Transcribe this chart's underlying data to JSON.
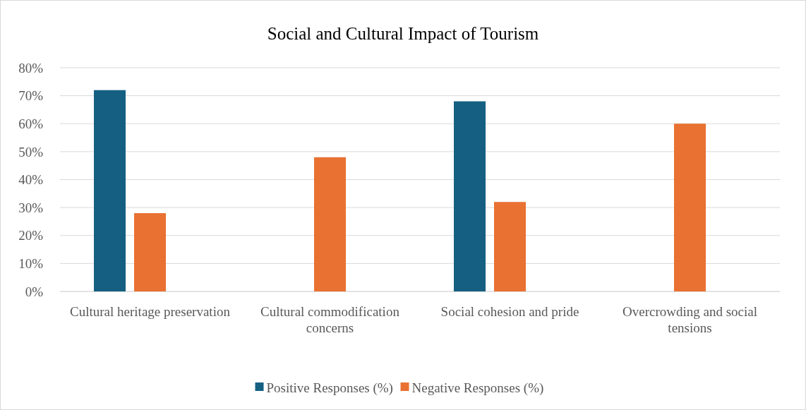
{
  "chart_data": {
    "type": "bar",
    "title": "Social and Cultural Impact of Tourism",
    "categories": [
      "Cultural heritage preservation",
      "Cultural commodification concerns",
      "Social cohesion and pride",
      "Overcrowding and social tensions"
    ],
    "series": [
      {
        "name": "Positive Responses (%)",
        "color": "#156082",
        "values": [
          72,
          null,
          68,
          null
        ]
      },
      {
        "name": "Negative Responses (%)",
        "color": "#e97132",
        "values": [
          28,
          48,
          32,
          60
        ]
      }
    ],
    "ylim": [
      0,
      80
    ],
    "yticks": [
      {
        "value": 0,
        "label": "0%"
      },
      {
        "value": 10,
        "label": "10%"
      },
      {
        "value": 20,
        "label": "20%"
      },
      {
        "value": 30,
        "label": "30%"
      },
      {
        "value": 40,
        "label": "40%"
      },
      {
        "value": 50,
        "label": "50%"
      },
      {
        "value": 60,
        "label": "60%"
      },
      {
        "value": 70,
        "label": "70%"
      },
      {
        "value": 80,
        "label": "80%"
      }
    ],
    "grid": "y",
    "legend": "bottom"
  }
}
